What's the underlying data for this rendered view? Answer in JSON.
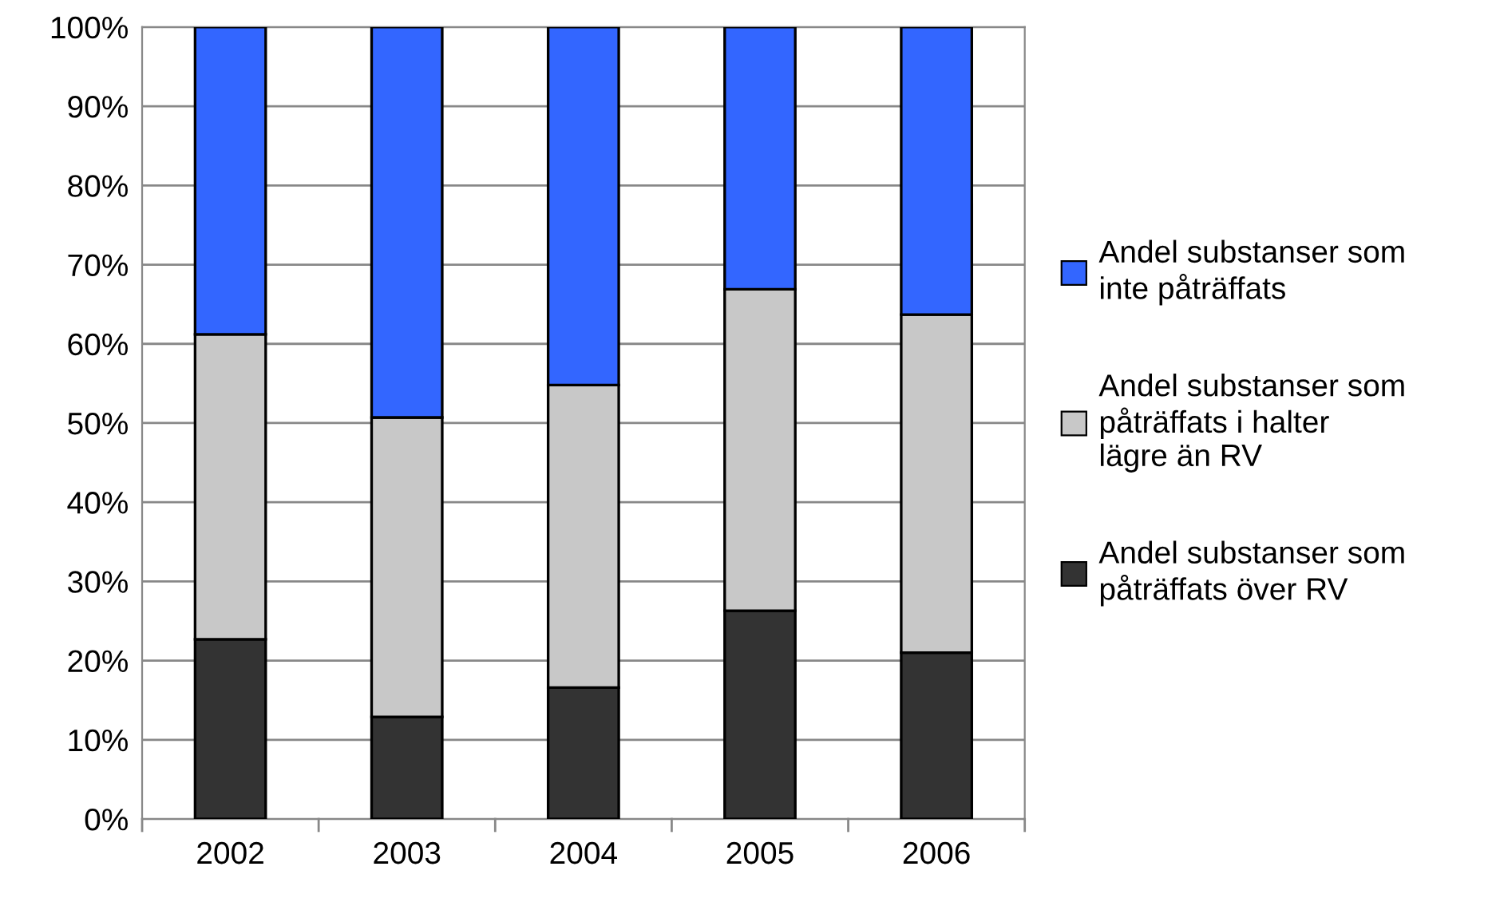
{
  "chart_data": {
    "type": "bar",
    "stacked": true,
    "categories": [
      "2002",
      "2003",
      "2004",
      "2005",
      "2006"
    ],
    "series": [
      {
        "name": "Andel substanser som\npåträffats över RV",
        "color": "#333333",
        "values": [
          22.7,
          12.9,
          16.6,
          26.3,
          21.0
        ]
      },
      {
        "name": "Andel substanser som\npåträffats i halter\nlägre än RV",
        "color": "#c8c8c8",
        "values": [
          38.5,
          37.8,
          38.2,
          40.6,
          42.7
        ]
      },
      {
        "name": "Andel substanser som\ninte påträffats",
        "color": "#3366ff",
        "values": [
          38.8,
          49.3,
          45.2,
          33.1,
          36.3
        ]
      }
    ],
    "ylim": [
      0,
      100
    ],
    "yticks": [
      {
        "value": 0,
        "label": "0%"
      },
      {
        "value": 10,
        "label": "10%"
      },
      {
        "value": 20,
        "label": "20%"
      },
      {
        "value": 30,
        "label": "30%"
      },
      {
        "value": 40,
        "label": "40%"
      },
      {
        "value": 50,
        "label": "50%"
      },
      {
        "value": 60,
        "label": "60%"
      },
      {
        "value": 70,
        "label": "70%"
      },
      {
        "value": 80,
        "label": "80%"
      },
      {
        "value": 90,
        "label": "90%"
      },
      {
        "value": 100,
        "label": "100%"
      }
    ],
    "grid": "y",
    "legend": "right"
  }
}
